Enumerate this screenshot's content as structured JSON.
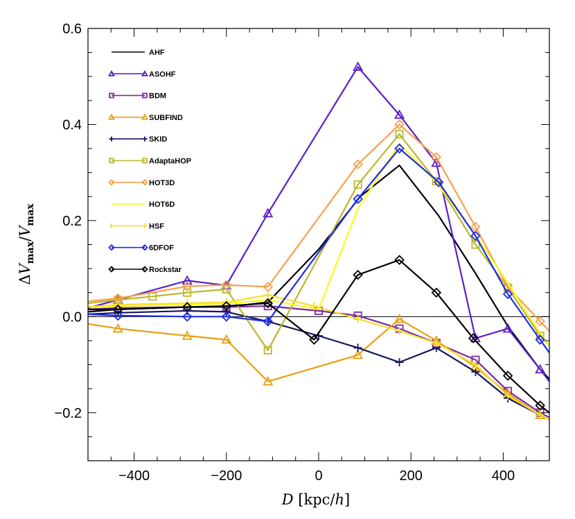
{
  "chart_data": {
    "type": "line",
    "xlabel": "D [kpc/h]",
    "ylabel": "ΔVmax/Vmax",
    "xlim": [
      -500,
      500
    ],
    "ylim": [
      -0.3,
      0.6
    ],
    "xticks": [
      -400,
      -200,
      0,
      200,
      400
    ],
    "xtick_labels": [
      "−400",
      "−200",
      "0",
      "200",
      "400"
    ],
    "yticks": [
      -0.2,
      0.0,
      0.2,
      0.4,
      0.6
    ],
    "ytick_labels": [
      "−0.2",
      "0.0",
      "0.2",
      "0.4",
      "0.6"
    ],
    "zero_line": true,
    "legend_position": "top-left",
    "series": [
      {
        "name": "AHF",
        "color": "#000000",
        "marker": "none",
        "points": [
          [
            -500,
            0.01
          ],
          [
            -435,
            0.015
          ],
          [
            -285,
            0.02
          ],
          [
            -200,
            0.02
          ],
          [
            -110,
            0.03
          ],
          [
            0,
            0.14
          ],
          [
            90,
            0.25
          ],
          [
            175,
            0.315
          ],
          [
            260,
            0.21
          ],
          [
            340,
            0.09
          ],
          [
            410,
            -0.02
          ],
          [
            480,
            -0.11
          ],
          [
            500,
            -0.13
          ]
        ]
      },
      {
        "name": "ASOHF",
        "color": "#5a1ec8",
        "marker": "triangle",
        "points": [
          [
            -500,
            0.018
          ],
          [
            -435,
            0.035
          ],
          [
            -285,
            0.075
          ],
          [
            -200,
            0.065
          ],
          [
            -110,
            0.215
          ],
          [
            85,
            0.52
          ],
          [
            175,
            0.42
          ],
          [
            255,
            0.32
          ],
          [
            340,
            -0.045
          ],
          [
            410,
            -0.025
          ],
          [
            480,
            -0.11
          ],
          [
            500,
            -0.135
          ]
        ]
      },
      {
        "name": "BDM",
        "color": "#7b2a9e",
        "marker": "square",
        "points": [
          [
            -500,
            0.015
          ],
          [
            -435,
            0.018
          ],
          [
            -285,
            0.02
          ],
          [
            -200,
            0.02
          ],
          [
            -110,
            0.022
          ],
          [
            0,
            0.012
          ],
          [
            85,
            0.002
          ],
          [
            175,
            -0.025
          ],
          [
            255,
            -0.055
          ],
          [
            340,
            -0.09
          ],
          [
            410,
            -0.155
          ],
          [
            480,
            -0.2
          ],
          [
            500,
            -0.21
          ]
        ]
      },
      {
        "name": "SUBFIND",
        "color": "#e8a010",
        "marker": "triangle",
        "points": [
          [
            -500,
            -0.015
          ],
          [
            -435,
            -0.025
          ],
          [
            -285,
            -0.04
          ],
          [
            -200,
            -0.048
          ],
          [
            -110,
            -0.135
          ],
          [
            85,
            -0.08
          ],
          [
            175,
            -0.005
          ],
          [
            255,
            -0.05
          ],
          [
            340,
            -0.105
          ],
          [
            410,
            -0.16
          ],
          [
            480,
            -0.205
          ],
          [
            500,
            -0.215
          ]
        ]
      },
      {
        "name": "SKID",
        "color": "#151560",
        "marker": "plus",
        "points": [
          [
            -500,
            0.005
          ],
          [
            -435,
            0.008
          ],
          [
            -285,
            0.012
          ],
          [
            -200,
            0.01
          ],
          [
            -110,
            -0.01
          ],
          [
            0,
            -0.04
          ],
          [
            85,
            -0.065
          ],
          [
            175,
            -0.095
          ],
          [
            255,
            -0.065
          ],
          [
            340,
            -0.115
          ],
          [
            410,
            -0.17
          ],
          [
            480,
            -0.205
          ],
          [
            500,
            -0.215
          ]
        ]
      },
      {
        "name": "AdaptaHOP",
        "color": "#bcb52a",
        "marker": "square",
        "points": [
          [
            -500,
            0.028
          ],
          [
            -435,
            0.035
          ],
          [
            -360,
            0.042
          ],
          [
            -285,
            0.05
          ],
          [
            -200,
            0.057
          ],
          [
            -110,
            -0.07
          ],
          [
            85,
            0.275
          ],
          [
            175,
            0.38
          ],
          [
            255,
            0.282
          ],
          [
            340,
            0.15
          ],
          [
            410,
            0.06
          ],
          [
            480,
            -0.04
          ],
          [
            500,
            -0.06
          ]
        ]
      },
      {
        "name": "HOT3D",
        "color": "#f5a04e",
        "marker": "diamond",
        "points": [
          [
            -500,
            0.032
          ],
          [
            -435,
            0.038
          ],
          [
            -285,
            0.063
          ],
          [
            -200,
            0.066
          ],
          [
            -110,
            0.062
          ],
          [
            85,
            0.317
          ],
          [
            175,
            0.4
          ],
          [
            255,
            0.332
          ],
          [
            340,
            0.187
          ],
          [
            410,
            0.062
          ],
          [
            480,
            -0.01
          ],
          [
            500,
            -0.03
          ]
        ]
      },
      {
        "name": "HOT6D",
        "color": "#fafa18",
        "marker": "none",
        "points": [
          [
            -500,
            0.02
          ],
          [
            -435,
            0.022
          ],
          [
            -285,
            0.025
          ],
          [
            -200,
            0.027
          ],
          [
            -110,
            0.035
          ],
          [
            0,
            0.015
          ],
          [
            85,
            0.225
          ],
          [
            175,
            0.36
          ],
          [
            255,
            0.28
          ],
          [
            340,
            0.17
          ],
          [
            410,
            0.07
          ],
          [
            480,
            -0.035
          ],
          [
            500,
            -0.06
          ]
        ]
      },
      {
        "name": "HSF",
        "color": "#f5e030",
        "marker": "plus",
        "points": [
          [
            -500,
            0.02
          ],
          [
            -435,
            0.025
          ],
          [
            -285,
            0.028
          ],
          [
            -200,
            0.03
          ],
          [
            -110,
            0.045
          ],
          [
            -10,
            0.022
          ],
          [
            85,
            -0.005
          ],
          [
            175,
            -0.03
          ],
          [
            255,
            -0.055
          ],
          [
            340,
            -0.1
          ],
          [
            410,
            -0.165
          ],
          [
            480,
            -0.205
          ],
          [
            500,
            -0.215
          ]
        ]
      },
      {
        "name": "6DFOF",
        "color": "#1c2bf0",
        "marker": "diamond",
        "points": [
          [
            -500,
            0.005
          ],
          [
            -435,
            0.002
          ],
          [
            -285,
            0.0
          ],
          [
            -200,
            0.0
          ],
          [
            -110,
            -0.01
          ],
          [
            85,
            0.245
          ],
          [
            175,
            0.35
          ],
          [
            260,
            0.28
          ],
          [
            340,
            0.168
          ],
          [
            410,
            0.047
          ],
          [
            480,
            -0.048
          ],
          [
            500,
            -0.075
          ]
        ]
      },
      {
        "name": "Rockstar",
        "color": "#000000",
        "marker": "diamond",
        "points": [
          [
            -500,
            0.015
          ],
          [
            -435,
            0.015
          ],
          [
            -285,
            0.02
          ],
          [
            -200,
            0.022
          ],
          [
            -110,
            0.028
          ],
          [
            -10,
            -0.048
          ],
          [
            85,
            0.087
          ],
          [
            175,
            0.118
          ],
          [
            255,
            0.05
          ],
          [
            335,
            -0.045
          ],
          [
            410,
            -0.123
          ],
          [
            480,
            -0.185
          ],
          [
            500,
            -0.2
          ]
        ]
      }
    ]
  }
}
